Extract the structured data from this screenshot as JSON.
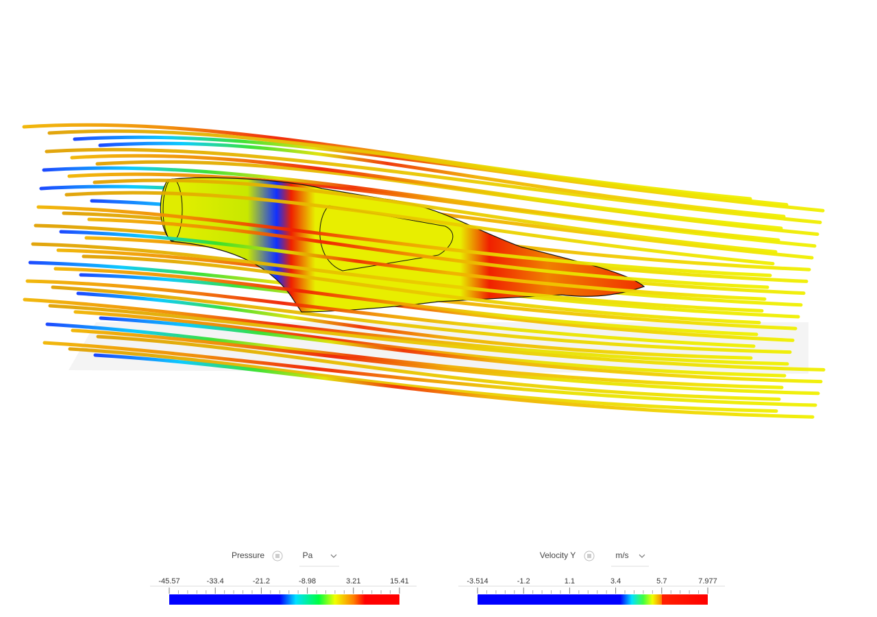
{
  "legends": [
    {
      "title": "Pressure",
      "unit": "Pa",
      "ticks": [
        -45.57,
        -33.4,
        -21.2,
        -8.98,
        3.21,
        15.41
      ]
    },
    {
      "title": "Velocity Y",
      "unit": "m/s",
      "ticks": [
        -3.514,
        -1.2,
        1.1,
        3.4,
        5.7,
        7.977
      ]
    }
  ]
}
